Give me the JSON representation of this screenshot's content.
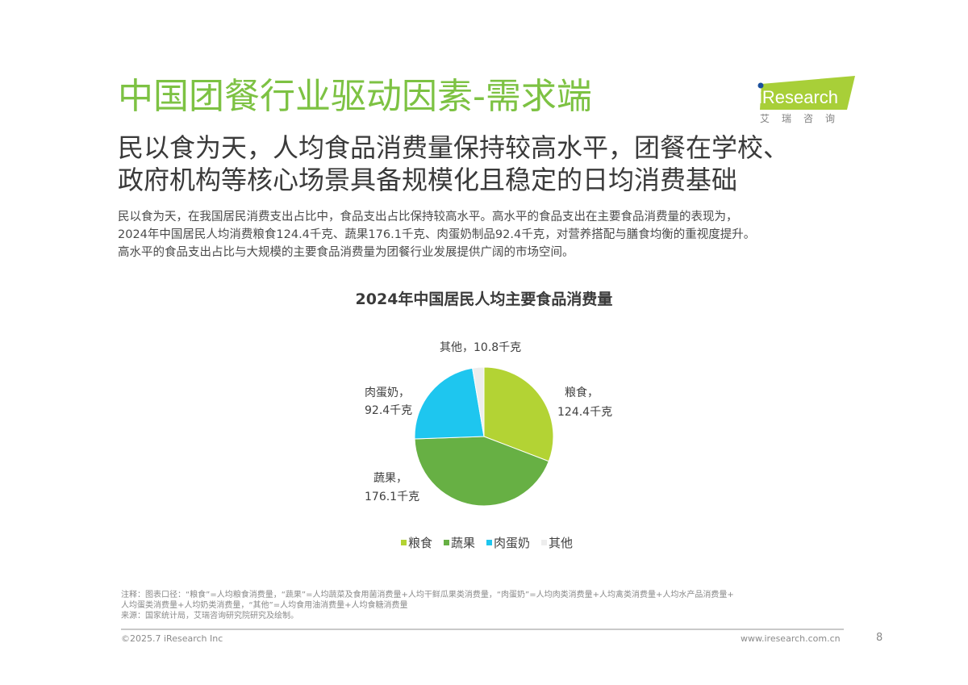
{
  "header": {
    "title": "中国团餐行业驱动因素-需求端",
    "logo_text": "iResearch",
    "logo_cn": "艾瑞咨询",
    "subtitle_line1": "民以食为天，人均食品消费量保持较高水平，团餐在学校、",
    "subtitle_line2": "政府机构等核心场景具备规模化且稳定的日均消费基础"
  },
  "body": {
    "lines": [
      "民以食为天，在我国居民消费支出占比中，食品支出占比保持较高水平。高水平的食品支出在主要食品消费量的表现为，",
      "2024年中国居民人均消费粮食124.4千克、蔬果176.1千克、肉蛋奶制品92.4千克，对营养搭配与膳食均衡的重视度提升。",
      "高水平的食品支出占比与大规模的主要食品消费量为团餐行业发展提供广阔的市场空间。"
    ]
  },
  "chart_data": {
    "type": "pie",
    "title": "2024年中国居民人均主要食品消费量",
    "unit": "千克",
    "categories": [
      "粮食",
      "蔬果",
      "肉蛋奶",
      "其他"
    ],
    "values": [
      124.4,
      176.1,
      92.4,
      10.8
    ],
    "colors": [
      "#b3d334",
      "#67b044",
      "#1ec6ef",
      "#ededed"
    ],
    "data_labels": [
      {
        "name": "粮食，",
        "value": "124.4千克"
      },
      {
        "name": "蔬果，",
        "value": "176.1千克"
      },
      {
        "name": "肉蛋奶，",
        "value": "92.4千克"
      },
      {
        "name": "其他，",
        "value": "10.8千克"
      }
    ],
    "start_angle": "12 o'clock, clockwise",
    "legend_position": "bottom"
  },
  "legend": {
    "items": [
      {
        "label": "粮食",
        "color": "#b3d334"
      },
      {
        "label": "蔬果",
        "color": "#67b044"
      },
      {
        "label": "肉蛋奶",
        "color": "#1ec6ef"
      },
      {
        "label": "其他",
        "color": "#ededed"
      }
    ]
  },
  "notes": {
    "line1": "注释：图表口径：“粮食”=人均粮食消费量，“蔬果”=人均蔬菜及食用菌消费量+人均干鲜瓜果类消费量，“肉蛋奶”=人均肉类消费量+人均禽类消费量+人均水产品消费量+",
    "line2": "人均蛋类消费量+人均奶类消费量，“其他”=人均食用油消费量+人均食糖消费量",
    "line3": "来源：国家统计局，艾瑞咨询研究院研究及绘制。"
  },
  "footer": {
    "copyright": "©2025.7 iResearch Inc",
    "website": "www.iresearch.com.cn",
    "page_number": "8"
  },
  "brand": {
    "title_green": "#7dc243",
    "logo_green": "#a8cf38"
  }
}
